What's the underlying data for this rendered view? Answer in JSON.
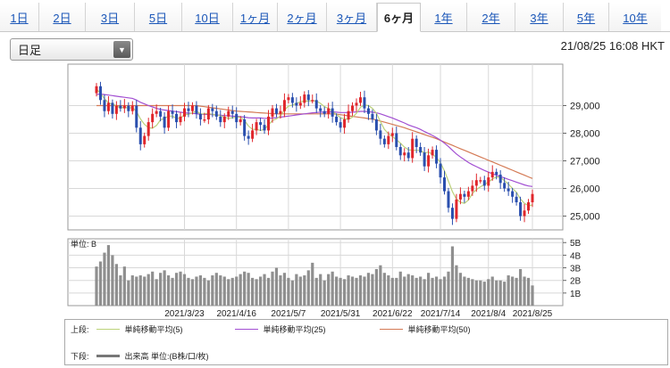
{
  "tabs": [
    {
      "label": "1日",
      "active": false
    },
    {
      "label": "2日",
      "active": false
    },
    {
      "label": "3日",
      "active": false
    },
    {
      "label": "5日",
      "active": false
    },
    {
      "label": "10日",
      "active": false
    },
    {
      "label": "1ヶ月",
      "active": false
    },
    {
      "label": "2ヶ月",
      "active": false
    },
    {
      "label": "3ヶ月",
      "active": false
    },
    {
      "label": "6ヶ月",
      "active": true
    },
    {
      "label": "1年",
      "active": false
    },
    {
      "label": "2年",
      "active": false
    },
    {
      "label": "3年",
      "active": false
    },
    {
      "label": "5年",
      "active": false
    },
    {
      "label": "10年",
      "active": false
    }
  ],
  "period_select": {
    "value": "日足"
  },
  "timestamp": "21/08/25 16:08 HKT",
  "legend": {
    "upper_label": "上段:",
    "lower_label": "下段:",
    "ma5": "単純移動平均(5)",
    "ma25": "単純移動平均(25)",
    "ma50": "単純移動平均(50)",
    "volume": "出来高 単位:(B株/口/枚)"
  },
  "colors": {
    "up": "#e0262b",
    "down": "#2a4fae",
    "ma5": "#bcd27a",
    "ma25": "#a24fd2",
    "ma50": "#d47a55",
    "volume_bar": "#8f8f8f",
    "grid": "#d8d8d8"
  },
  "chart_data": [
    {
      "type": "candlestick",
      "xlabel_ticks": [
        "2021/3/23",
        "2021/4/16",
        "2021/5/7",
        "2021/5/31",
        "2021/6/22",
        "2021/7/14",
        "2021/8/4",
        "2021/8/25"
      ],
      "ylim": [
        24500,
        30500
      ],
      "yticks": [
        25000,
        26000,
        27000,
        28000,
        29000
      ],
      "ytick_labels": [
        "25,000",
        "26,000",
        "27,000",
        "28,000",
        "29,000"
      ],
      "grid": true,
      "close": [
        29700,
        29200,
        28800,
        29100,
        28700,
        29000,
        28900,
        29000,
        28800,
        29000,
        28200,
        27600,
        27900,
        28400,
        28700,
        28800,
        28600,
        28200,
        28800,
        28700,
        28400,
        28600,
        28900,
        28800,
        29000,
        28700,
        28500,
        28500,
        28900,
        28800,
        28600,
        28400,
        28600,
        28800,
        28700,
        28400,
        28500,
        27900,
        27800,
        28100,
        28400,
        28300,
        28100,
        28600,
        28900,
        28700,
        28800,
        29200,
        29300,
        29100,
        29000,
        29100,
        29400,
        29200,
        29200,
        28900,
        28800,
        28700,
        28900,
        28600,
        28400,
        28200,
        28500,
        28800,
        29000,
        29100,
        29300,
        28900,
        28700,
        28500,
        28100,
        27800,
        27600,
        27900,
        28000,
        27500,
        27200,
        27300,
        27100,
        27800,
        27500,
        27300,
        26800,
        27200,
        27400,
        26900,
        26400,
        25900,
        25300,
        24900,
        25600,
        25800,
        25700,
        25900,
        26100,
        26300,
        26300,
        26100,
        26400,
        26600,
        26500,
        26200,
        26000,
        25900,
        25700,
        25500,
        25000,
        25200,
        25500,
        25800
      ],
      "ma5": [
        29600,
        29450,
        29250,
        29100,
        29050,
        29000,
        28900,
        28950,
        28900,
        28940,
        28780,
        28520,
        28320,
        28200,
        28180,
        28280,
        28480,
        28540,
        28620,
        28620,
        28540,
        28540,
        28680,
        28680,
        28740,
        28800,
        28700,
        28700,
        28720,
        28680,
        28660,
        28640,
        28580,
        28540,
        28560,
        28580,
        28580,
        28460,
        28260,
        28140,
        28140,
        28100,
        28140,
        28300,
        28460,
        28520,
        28620,
        28840,
        28980,
        29020,
        29080,
        29140,
        29160,
        29160,
        29180,
        29160,
        29080,
        28960,
        28900,
        28780,
        28680,
        28560,
        28520,
        28500,
        28580,
        28720,
        28940,
        29020,
        29000,
        28900,
        28720,
        28420,
        28140,
        27980,
        27880,
        27760,
        27640,
        27500,
        27400,
        27380,
        27380,
        27380,
        27280,
        27320,
        27240,
        27120,
        26940,
        26640,
        26260,
        25880,
        25620,
        25500,
        25460,
        25580,
        25820,
        25960,
        26060,
        26140,
        26240,
        26340,
        26420,
        26400,
        26280,
        26160,
        26000,
        25860,
        25620,
        25460,
        25380,
        25400
      ],
      "ma25": [
        29400,
        29420,
        29400,
        29380,
        29360,
        29340,
        29320,
        29300,
        29280,
        29260,
        29200,
        29120,
        29060,
        29000,
        28950,
        28900,
        28860,
        28840,
        28820,
        28800,
        28780,
        28760,
        28740,
        28730,
        28720,
        28700,
        28690,
        28680,
        28680,
        28670,
        28660,
        28650,
        28640,
        28630,
        28620,
        28610,
        28600,
        28580,
        28560,
        28550,
        28550,
        28550,
        28540,
        28540,
        28550,
        28560,
        28580,
        28600,
        28620,
        28640,
        28660,
        28680,
        28700,
        28720,
        28740,
        28750,
        28760,
        28760,
        28770,
        28770,
        28760,
        28750,
        28750,
        28750,
        28760,
        28770,
        28790,
        28790,
        28780,
        28760,
        28740,
        28700,
        28650,
        28600,
        28550,
        28490,
        28430,
        28370,
        28300,
        28250,
        28200,
        28140,
        28060,
        27990,
        27920,
        27840,
        27750,
        27640,
        27520,
        27380,
        27250,
        27140,
        27040,
        26940,
        26860,
        26790,
        26720,
        26650,
        26590,
        26530,
        26480,
        26430,
        26380,
        26330,
        26280,
        26230,
        26180,
        26130,
        26090,
        26070
      ],
      "ma50": [
        29000,
        29000,
        29000,
        29000,
        29000,
        29000,
        29000,
        29000,
        29000,
        29000,
        29000,
        29000,
        29000,
        29000,
        29000,
        29000,
        29000,
        29000,
        29000,
        29000,
        29000,
        29000,
        29000,
        29000,
        29000,
        29000,
        28980,
        28960,
        28940,
        28920,
        28900,
        28880,
        28860,
        28840,
        28820,
        28800,
        28790,
        28780,
        28770,
        28760,
        28750,
        28740,
        28730,
        28720,
        28710,
        28700,
        28700,
        28700,
        28700,
        28700,
        28700,
        28700,
        28700,
        28700,
        28700,
        28700,
        28700,
        28700,
        28700,
        28700,
        28690,
        28670,
        28650,
        28630,
        28610,
        28590,
        28570,
        28550,
        28530,
        28510,
        28480,
        28440,
        28400,
        28360,
        28320,
        28280,
        28240,
        28200,
        28150,
        28100,
        28050,
        28000,
        27950,
        27900,
        27850,
        27800,
        27740,
        27680,
        27620,
        27560,
        27500,
        27440,
        27380,
        27320,
        27260,
        27200,
        27140,
        27080,
        27020,
        26960,
        26900,
        26840,
        26780,
        26720,
        26660,
        26600,
        26540,
        26480,
        26420,
        26360
      ],
      "series_names": [
        "単純移動平均(5)",
        "単純移動平均(25)",
        "単純移動平均(50)"
      ]
    },
    {
      "type": "bar",
      "name": "出来高",
      "unit_label": "単位: B",
      "ylim": [
        0,
        5.3
      ],
      "yticks": [
        1,
        2,
        3,
        4,
        5
      ],
      "ytick_labels": [
        "1B",
        "2B",
        "3B",
        "4B",
        "5B"
      ],
      "values": [
        3.1,
        3.5,
        4.2,
        4.8,
        4.0,
        3.3,
        2.4,
        3.1,
        2.0,
        2.4,
        2.3,
        2.4,
        2.3,
        2.5,
        2.7,
        2.1,
        2.6,
        2.8,
        2.4,
        2.2,
        2.6,
        2.7,
        2.5,
        2.2,
        2.1,
        2.3,
        2.4,
        2.2,
        2.0,
        2.4,
        2.6,
        2.4,
        2.3,
        2.1,
        2.2,
        2.3,
        2.5,
        2.7,
        2.6,
        2.2,
        2.1,
        2.3,
        2.5,
        2.2,
        2.7,
        3.0,
        2.4,
        2.6,
        2.2,
        2.0,
        2.5,
        2.3,
        2.4,
        2.8,
        3.4,
        2.2,
        2.5,
        2.0,
        2.5,
        2.7,
        2.3,
        2.2,
        2.1,
        2.4,
        2.3,
        2.2,
        2.4,
        2.3,
        2.6,
        2.5,
        2.9,
        3.2,
        2.6,
        2.4,
        2.2,
        2.2,
        2.7,
        2.3,
        2.5,
        2.4,
        2.2,
        2.3,
        2.1,
        2.6,
        2.2,
        2.3,
        2.1,
        2.3,
        2.7,
        4.7,
        3.2,
        2.6,
        2.3,
        2.2,
        2.1,
        2.0,
        2.0,
        1.9,
        2.1,
        2.3,
        2.0,
        2.0,
        1.9,
        2.4,
        2.3,
        2.2,
        2.9,
        2.3,
        2.2,
        1.6
      ]
    }
  ]
}
